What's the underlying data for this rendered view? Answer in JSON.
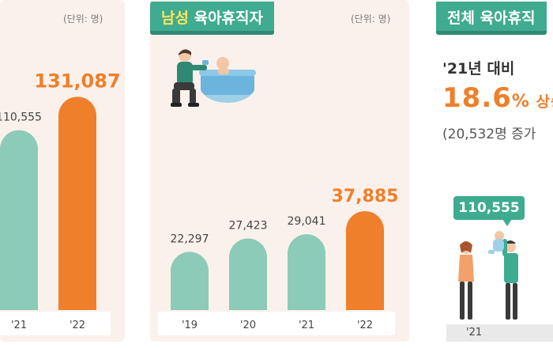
{
  "panels": [
    {
      "title": "",
      "title_highlight": "",
      "unit": "(단위: 명)"
    },
    {
      "title_highlight": "남성",
      "title": " 육아휴직자",
      "unit": "(단위: 명)"
    },
    {
      "title": "전체 육아휴직"
    }
  ],
  "chart_data": [
    {
      "type": "bar",
      "categories": [
        "'21",
        "'22"
      ],
      "values": [
        110555,
        131087
      ],
      "labels": [
        "110,555",
        "131,087"
      ],
      "ylim": [
        0,
        140000
      ],
      "highlight_color": "#ef7f2a",
      "base_color": "#8ccbb7"
    },
    {
      "type": "bar",
      "categories": [
        "'19",
        "'20",
        "'21",
        "'22"
      ],
      "values": [
        22297,
        27423,
        29041,
        37885
      ],
      "labels": [
        "22,297",
        "27,423",
        "29,041",
        "37,885"
      ],
      "ylim": [
        0,
        40000
      ],
      "highlight_color": "#ef7f2a",
      "base_color": "#8ccbb7"
    }
  ],
  "summary": {
    "line1": "'21년 대비",
    "rate_num": "18.6",
    "rate_unit": "%",
    "rate_rest": " 상승",
    "line3": "(20,532명 증가",
    "bubble": "110,555",
    "base_label": "'21"
  },
  "colors": {
    "accent": "#3fab8f",
    "highlight": "#ef7f2a",
    "panel_bg": "#fbf1ec"
  }
}
